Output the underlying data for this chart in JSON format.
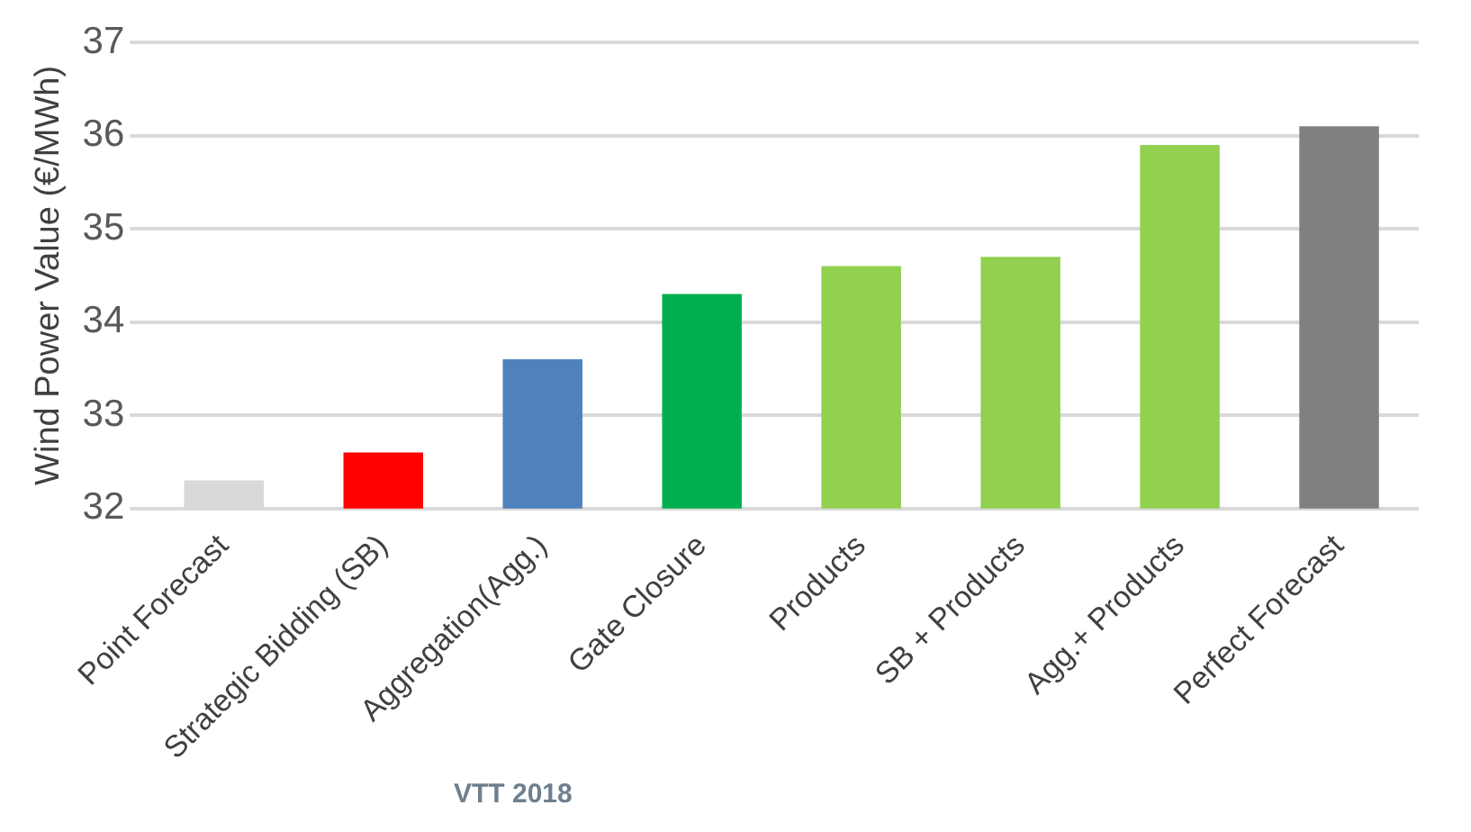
{
  "chart_data": {
    "type": "bar",
    "ylabel": "Wind Power Value (€/MWh)",
    "categories": [
      "Point Forecast",
      "Strategic Bidding (SB)",
      "Aggregation(Agg.)",
      "Gate Closure",
      "Products",
      "SB + Products",
      "Agg.+ Products",
      "Perfect Forecast"
    ],
    "values": [
      32.3,
      32.6,
      33.6,
      34.3,
      34.6,
      34.7,
      35.9,
      36.1
    ],
    "colors": [
      "#d9d9d9",
      "#ff0000",
      "#4f81bd",
      "#00b050",
      "#92d050",
      "#92d050",
      "#92d050",
      "#808080"
    ],
    "ylim": [
      32,
      37
    ],
    "yticks": [
      32,
      33,
      34,
      35,
      36,
      37
    ],
    "grid": "y",
    "annotations": [
      "VTT 2018"
    ]
  }
}
